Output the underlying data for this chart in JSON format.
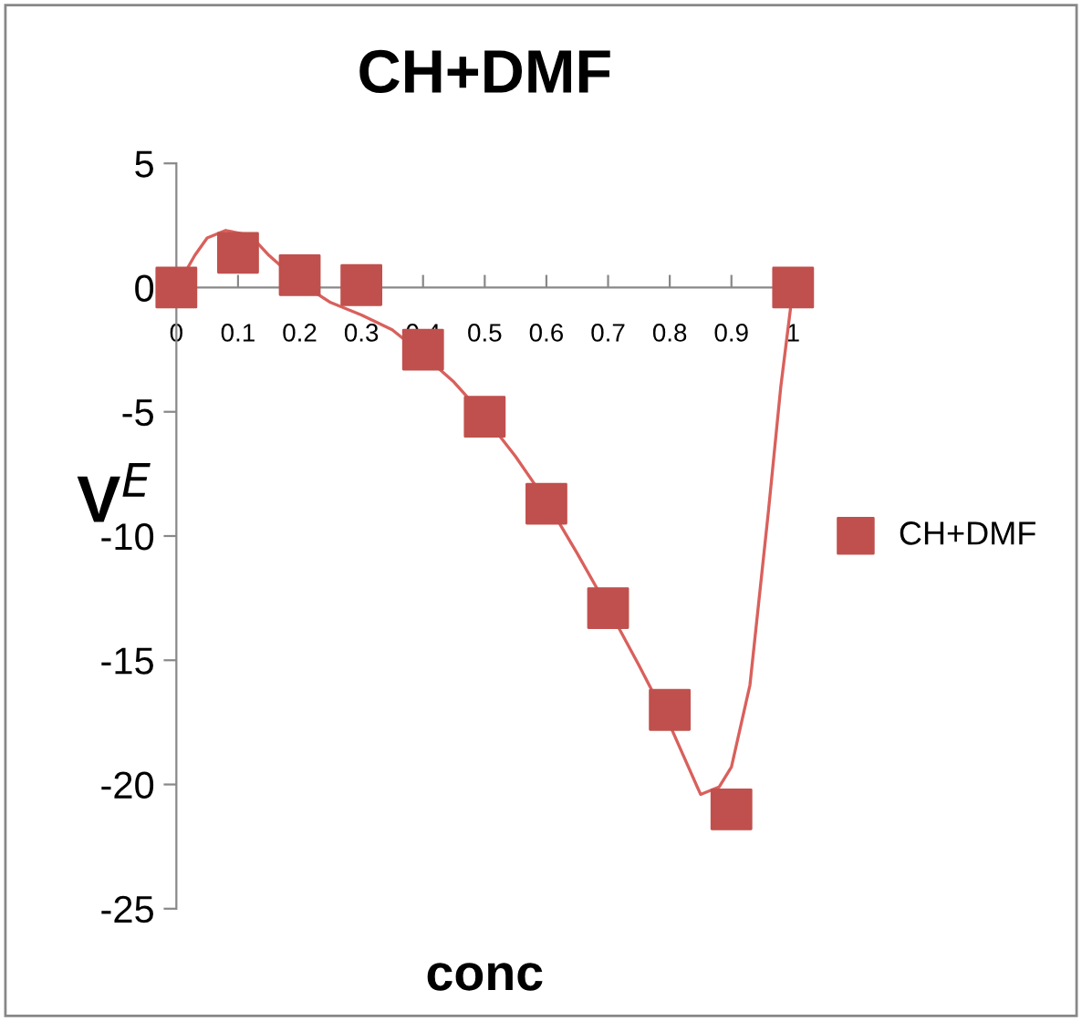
{
  "chart_data": {
    "type": "scatter",
    "title": "CH+DMF",
    "xlabel": "conc",
    "ylabel": "V$^{E}$",
    "xlim": [
      0,
      1
    ],
    "xticks": [
      0,
      0.1,
      0.2,
      0.3,
      0.4,
      0.5,
      0.6,
      0.7,
      0.8,
      0.9,
      1
    ],
    "ylim": [
      -25,
      5
    ],
    "yticks": [
      -25,
      -20,
      -15,
      -10,
      -5,
      0,
      5
    ],
    "grid": false,
    "legend": "right",
    "series": [
      {
        "name": "CH+DMF",
        "color": "#c0504d",
        "marker": "square",
        "x": [
          0,
          0.1,
          0.2,
          0.3,
          0.4,
          0.5,
          0.6,
          0.7,
          0.8,
          0.9,
          1
        ],
        "values": [
          0,
          1.4,
          0.5,
          0.1,
          -2.5,
          -5.2,
          -8.7,
          -12.9,
          -17,
          -21,
          0
        ]
      },
      {
        "type": "line",
        "color": "#d9605c",
        "marker": "none",
        "x": [
          0,
          0.03,
          0.05,
          0.08,
          0.12,
          0.15,
          0.2,
          0.25,
          0.3,
          0.35,
          0.4,
          0.45,
          0.5,
          0.55,
          0.6,
          0.65,
          0.7,
          0.75,
          0.8,
          0.85,
          0.88,
          0.9,
          0.93,
          0.96,
          0.98,
          1
        ],
        "values": [
          0,
          1.3,
          2.0,
          2.3,
          2.1,
          1.3,
          0.2,
          -0.6,
          -1.1,
          -1.7,
          -2.7,
          -3.8,
          -5.2,
          -6.8,
          -8.6,
          -10.7,
          -12.9,
          -15.2,
          -17.6,
          -20.4,
          -20.1,
          -19.3,
          -16,
          -9,
          -4,
          0
        ]
      }
    ]
  }
}
